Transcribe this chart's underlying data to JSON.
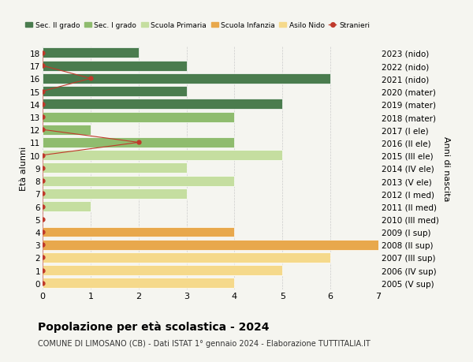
{
  "ages": [
    18,
    17,
    16,
    15,
    14,
    13,
    12,
    11,
    10,
    9,
    8,
    7,
    6,
    5,
    4,
    3,
    2,
    1,
    0
  ],
  "right_labels": [
    "2005 (V sup)",
    "2006 (IV sup)",
    "2007 (III sup)",
    "2008 (II sup)",
    "2009 (I sup)",
    "2010 (III med)",
    "2011 (II med)",
    "2012 (I med)",
    "2013 (V ele)",
    "2014 (IV ele)",
    "2015 (III ele)",
    "2016 (II ele)",
    "2017 (I ele)",
    "2018 (mater)",
    "2019 (mater)",
    "2020 (mater)",
    "2021 (nido)",
    "2022 (nido)",
    "2023 (nido)"
  ],
  "bar_values": [
    2,
    3,
    6,
    3,
    5,
    4,
    1,
    4,
    5,
    3,
    4,
    3,
    1,
    0,
    4,
    7,
    6,
    5,
    4
  ],
  "bar_colors": [
    "#4a7c4e",
    "#4a7c4e",
    "#4a7c4e",
    "#4a7c4e",
    "#4a7c4e",
    "#8fbc6e",
    "#8fbc6e",
    "#8fbc6e",
    "#c5dea0",
    "#c5dea0",
    "#c5dea0",
    "#c5dea0",
    "#c5dea0",
    "#e8a84c",
    "#e8a84c",
    "#e8a84c",
    "#f5d98b",
    "#f5d98b",
    "#f5d98b"
  ],
  "stranieri_values": [
    0,
    0,
    1,
    0,
    0,
    0,
    0,
    2,
    0,
    0,
    0,
    0,
    0,
    0,
    0,
    0,
    0,
    0,
    0
  ],
  "title": "Popolazione per età scolastica - 2024",
  "subtitle": "COMUNE DI LIMOSANO (CB) - Dati ISTAT 1° gennaio 2024 - Elaborazione TUTTITALIA.IT",
  "ylabel_left": "Età alunni",
  "ylabel_right": "Anni di nascita",
  "xlim": [
    0,
    7
  ],
  "color_sec2": "#4a7c4e",
  "color_sec1": "#8fbc6e",
  "color_primaria": "#c5dea0",
  "color_infanzia": "#e8a84c",
  "color_nido": "#f5d98b",
  "color_stranieri": "#c0392b",
  "background": "#f5f5f0"
}
